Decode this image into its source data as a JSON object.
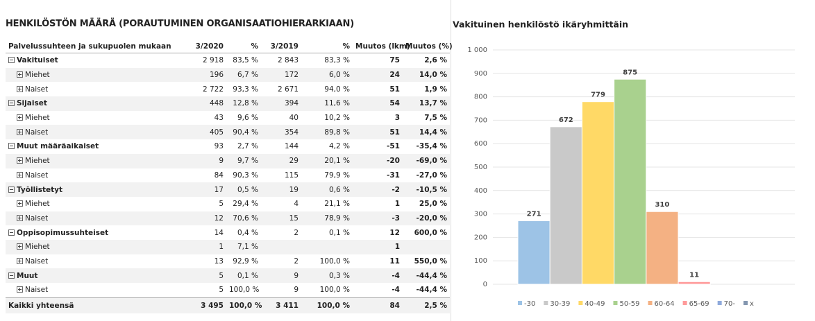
{
  "table": {
    "title": "HENKILÖSTÖN MÄÄRÄ (PORAUTUMINEN ORGANISAATIOHIERARKIAAN)",
    "columns": [
      "Palvelussuhteen ja sukupuolen mukaan",
      "3/2020",
      "%",
      "3/2019",
      "%",
      "Muutos (lkm)",
      "Muutos (%)"
    ],
    "groups": [
      {
        "label": "Vakituiset",
        "cells": [
          "2 918",
          "83,5 %",
          "2 843",
          "83,3 %",
          "75",
          "2,6 %"
        ],
        "children": [
          {
            "label": "Miehet",
            "cells": [
              "196",
              "6,7 %",
              "172",
              "6,0 %",
              "24",
              "14,0 %"
            ]
          },
          {
            "label": "Naiset",
            "cells": [
              "2 722",
              "93,3 %",
              "2 671",
              "94,0 %",
              "51",
              "1,9 %"
            ]
          }
        ]
      },
      {
        "label": "Sijaiset",
        "cells": [
          "448",
          "12,8 %",
          "394",
          "11,6 %",
          "54",
          "13,7 %"
        ],
        "children": [
          {
            "label": "Miehet",
            "cells": [
              "43",
              "9,6 %",
              "40",
              "10,2 %",
              "3",
              "7,5 %"
            ]
          },
          {
            "label": "Naiset",
            "cells": [
              "405",
              "90,4 %",
              "354",
              "89,8 %",
              "51",
              "14,4 %"
            ]
          }
        ]
      },
      {
        "label": "Muut määräaikaiset",
        "cells": [
          "93",
          "2,7 %",
          "144",
          "4,2 %",
          "-51",
          "-35,4 %"
        ],
        "children": [
          {
            "label": "Miehet",
            "cells": [
              "9",
              "9,7 %",
              "29",
              "20,1 %",
              "-20",
              "-69,0 %"
            ]
          },
          {
            "label": "Naiset",
            "cells": [
              "84",
              "90,3 %",
              "115",
              "79,9 %",
              "-31",
              "-27,0 %"
            ]
          }
        ]
      },
      {
        "label": "Työllistetyt",
        "cells": [
          "17",
          "0,5 %",
          "19",
          "0,6 %",
          "-2",
          "-10,5 %"
        ],
        "children": [
          {
            "label": "Miehet",
            "cells": [
              "5",
              "29,4 %",
              "4",
              "21,1 %",
              "1",
              "25,0 %"
            ]
          },
          {
            "label": "Naiset",
            "cells": [
              "12",
              "70,6 %",
              "15",
              "78,9 %",
              "-3",
              "-20,0 %"
            ]
          }
        ]
      },
      {
        "label": "Oppisopimussuhteiset",
        "cells": [
          "14",
          "0,4 %",
          "2",
          "0,1 %",
          "12",
          "600,0 %"
        ],
        "children": [
          {
            "label": "Miehet",
            "cells": [
              "1",
              "7,1 %",
              null,
              null,
              "1",
              null
            ]
          },
          {
            "label": "Naiset",
            "cells": [
              "13",
              "92,9 %",
              "2",
              "100,0 %",
              "11",
              "550,0 %"
            ]
          }
        ]
      },
      {
        "label": "Muut",
        "cells": [
          "5",
          "0,1 %",
          "9",
          "0,3 %",
          "-4",
          "-44,4 %"
        ],
        "children": [
          {
            "label": "Naiset",
            "cells": [
              "5",
              "100,0 %",
              "9",
              "100,0 %",
              "-4",
              "-44,4 %"
            ]
          }
        ]
      }
    ],
    "total": {
      "label": "Kaikki yhteensä",
      "cells": [
        "3 495",
        "100,0 %",
        "3 411",
        "100,0 %",
        "84",
        "2,5 %"
      ]
    }
  },
  "chart_data": {
    "type": "bar",
    "title": "Vakituinen henkilöstö ikäryhmittäin",
    "categories": [
      "-30",
      "30-39",
      "40-49",
      "50-59",
      "60-64",
      "65-69",
      "70-",
      "x"
    ],
    "values": [
      271,
      672,
      779,
      875,
      310,
      11,
      null,
      null
    ],
    "colors": [
      "#9dc3e6",
      "#c9c9c9",
      "#ffd966",
      "#a9d18e",
      "#f4b183",
      "#ff9b9b",
      "#8faadc",
      "#8497b0"
    ],
    "ylim": [
      0,
      1000
    ],
    "yticks": [
      0,
      100,
      200,
      300,
      400,
      500,
      600,
      700,
      800,
      900,
      {
        "value": 1000,
        "label": "1 000"
      }
    ],
    "grid": true,
    "legend": "bottom"
  }
}
